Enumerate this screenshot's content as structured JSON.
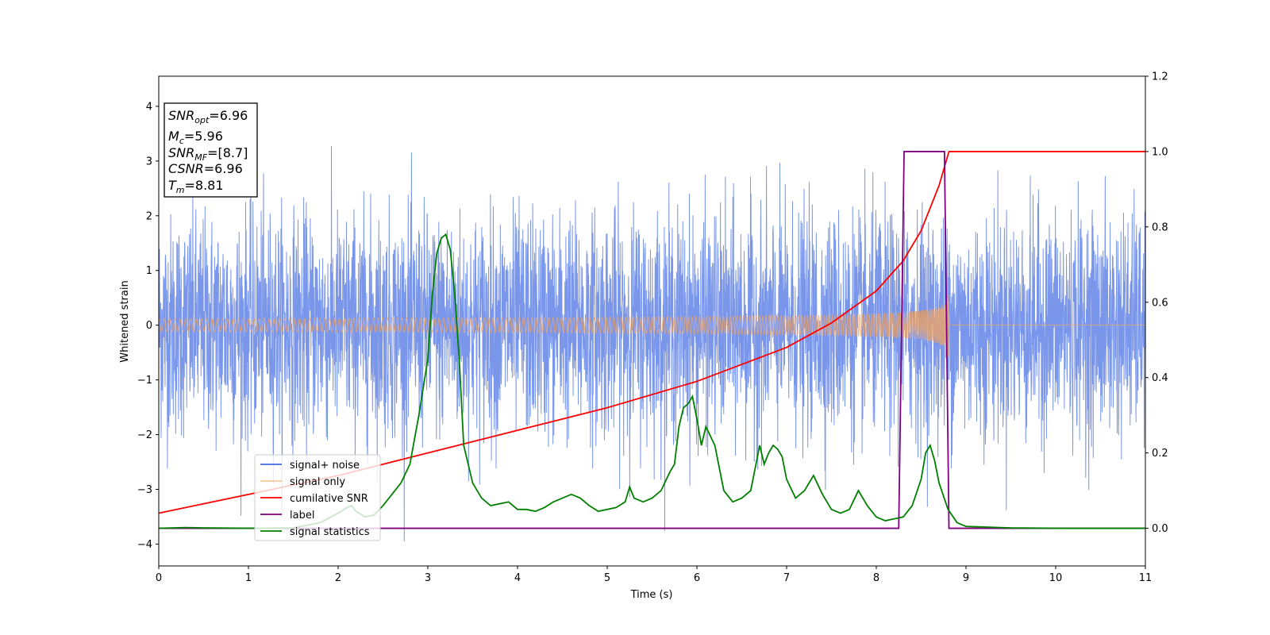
{
  "chart_data": {
    "type": "line",
    "xlabel": "Time (s)",
    "ylabel": "Whitened strain",
    "xlim": [
      0,
      11
    ],
    "ylim": [
      -4.4,
      4.55
    ],
    "y2lim": [
      -0.1,
      1.2
    ],
    "x_ticks": [
      "0",
      "1",
      "2",
      "3",
      "4",
      "5",
      "6",
      "7",
      "8",
      "9",
      "10",
      "11"
    ],
    "y_ticks": [
      "−4",
      "−3",
      "−2",
      "−1",
      "0",
      "1",
      "2",
      "3",
      "4"
    ],
    "y2_ticks": [
      "0.0",
      "0.2",
      "0.4",
      "0.6",
      "0.8",
      "1.0",
      "1.2"
    ],
    "grid": false,
    "legend_position": "lower-left",
    "info_box": {
      "snr_opt": {
        "sym": "SNR",
        "sub": "opt",
        "val": "=6.96"
      },
      "mc": {
        "sym": "M",
        "sub": "c",
        "val": "=5.96"
      },
      "snr_mf": {
        "sym": "SNR",
        "sub": "MF",
        "val": "=[8.7]"
      },
      "csnr": {
        "sym": "CSNR",
        "val": "=6.96"
      },
      "tm": {
        "sym": "T",
        "sub": "m",
        "val": "=8.81"
      }
    },
    "series": [
      {
        "name": "signal+ noise",
        "axis": "left",
        "color": "#4169e1",
        "noise_std": 1.0,
        "range": [
          -3.95,
          4.15
        ]
      },
      {
        "name": "signal only",
        "axis": "left",
        "color": "#f4a460",
        "merger_time": 8.81,
        "peak_amplitude": 0.7
      },
      {
        "name": "cumilative SNR",
        "axis": "right",
        "color": "#ff0000",
        "x": [
          0,
          1,
          2,
          3,
          4,
          5,
          6,
          7,
          7.5,
          8,
          8.3,
          8.5,
          8.7,
          8.81,
          11
        ],
        "y": [
          0.04,
          0.09,
          0.14,
          0.2,
          0.26,
          0.32,
          0.39,
          0.48,
          0.545,
          0.63,
          0.71,
          0.79,
          0.91,
          1.0,
          1.0
        ]
      },
      {
        "name": "label",
        "axis": "right",
        "color": "#800080",
        "x": [
          0,
          8.25,
          8.31,
          8.76,
          8.81,
          11
        ],
        "y": [
          0,
          0,
          1,
          1,
          0,
          0
        ]
      },
      {
        "name": "signal statistics",
        "axis": "right",
        "color": "#008000",
        "x": [
          0,
          0.3,
          0.5,
          1.0,
          1.5,
          1.8,
          2.0,
          2.1,
          2.15,
          2.2,
          2.3,
          2.4,
          2.5,
          2.6,
          2.7,
          2.8,
          2.9,
          3.0,
          3.05,
          3.1,
          3.15,
          3.2,
          3.25,
          3.3,
          3.35,
          3.4,
          3.5,
          3.6,
          3.7,
          3.8,
          3.9,
          4.0,
          4.1,
          4.2,
          4.3,
          4.4,
          4.5,
          4.6,
          4.7,
          4.8,
          4.9,
          5.0,
          5.1,
          5.2,
          5.25,
          5.3,
          5.4,
          5.5,
          5.6,
          5.7,
          5.75,
          5.8,
          5.85,
          5.9,
          5.95,
          6.0,
          6.05,
          6.1,
          6.2,
          6.3,
          6.4,
          6.5,
          6.6,
          6.7,
          6.75,
          6.8,
          6.85,
          6.9,
          6.95,
          7.0,
          7.1,
          7.2,
          7.3,
          7.4,
          7.5,
          7.6,
          7.7,
          7.8,
          7.9,
          8.0,
          8.1,
          8.2,
          8.3,
          8.4,
          8.5,
          8.55,
          8.6,
          8.65,
          8.7,
          8.8,
          8.9,
          9.0,
          9.5,
          10,
          11
        ],
        "y": [
          0.0,
          0.002,
          0.001,
          0.0,
          0.001,
          0.015,
          0.04,
          0.055,
          0.06,
          0.045,
          0.03,
          0.035,
          0.06,
          0.09,
          0.12,
          0.17,
          0.3,
          0.45,
          0.62,
          0.73,
          0.77,
          0.78,
          0.74,
          0.62,
          0.45,
          0.22,
          0.12,
          0.08,
          0.06,
          0.065,
          0.07,
          0.05,
          0.05,
          0.045,
          0.055,
          0.07,
          0.08,
          0.09,
          0.08,
          0.06,
          0.045,
          0.05,
          0.055,
          0.07,
          0.11,
          0.08,
          0.07,
          0.08,
          0.1,
          0.15,
          0.17,
          0.27,
          0.32,
          0.33,
          0.35,
          0.29,
          0.22,
          0.27,
          0.22,
          0.1,
          0.07,
          0.08,
          0.1,
          0.22,
          0.17,
          0.2,
          0.22,
          0.21,
          0.19,
          0.13,
          0.08,
          0.1,
          0.14,
          0.09,
          0.05,
          0.04,
          0.05,
          0.1,
          0.06,
          0.03,
          0.02,
          0.025,
          0.03,
          0.06,
          0.13,
          0.2,
          0.22,
          0.18,
          0.12,
          0.05,
          0.015,
          0.005,
          0.001,
          0.0,
          0.0
        ]
      }
    ]
  }
}
